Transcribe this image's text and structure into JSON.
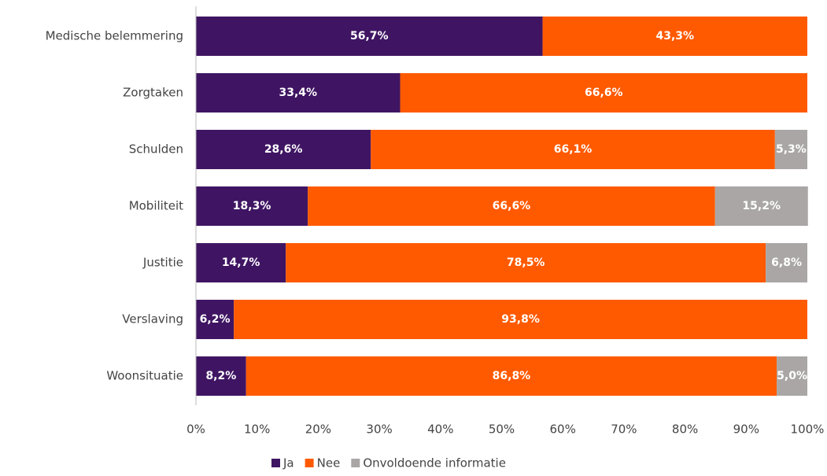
{
  "chart_data": {
    "type": "stacked-barh",
    "categories": [
      "Medische belemmering",
      "Zorgtaken",
      "Schulden",
      "Mobiliteit",
      "Justitie",
      "Verslaving",
      "Woonsituatie"
    ],
    "series": [
      {
        "name": "Ja",
        "color": "#3f1563",
        "values": [
          56.7,
          33.4,
          28.6,
          18.3,
          14.7,
          6.2,
          8.2
        ],
        "value_labels": [
          "56,7%",
          "33,4%",
          "28,6%",
          "18,3%",
          "14,7%",
          "6,2%",
          "8,2%"
        ]
      },
      {
        "name": "Nee",
        "color": "#ff5a00",
        "values": [
          43.3,
          66.6,
          66.1,
          66.6,
          78.5,
          93.8,
          86.8
        ],
        "value_labels": [
          "43,3%",
          "66,6%",
          "66,1%",
          "66,6%",
          "78,5%",
          "93,8%",
          "86,8%"
        ]
      },
      {
        "name": "Onvoldoende informatie",
        "color": "#aaa6a6",
        "values": [
          null,
          null,
          5.3,
          15.2,
          6.8,
          null,
          5.0
        ],
        "value_labels": [
          null,
          null,
          "5,3%",
          "15,2%",
          "6,8%",
          null,
          "5,0%"
        ]
      }
    ],
    "xlim": [
      0,
      100
    ],
    "xticks": [
      {
        "value": 0,
        "label": "0%"
      },
      {
        "value": 10,
        "label": "10%"
      },
      {
        "value": 20,
        "label": "20%"
      },
      {
        "value": 30,
        "label": "30%"
      },
      {
        "value": 40,
        "label": "40%"
      },
      {
        "value": 50,
        "label": "50%"
      },
      {
        "value": 60,
        "label": "60%"
      },
      {
        "value": 70,
        "label": "70%"
      },
      {
        "value": 80,
        "label": "80%"
      },
      {
        "value": 90,
        "label": "90%"
      },
      {
        "value": 100,
        "label": "100%"
      }
    ],
    "grid": false,
    "legend": "bottom"
  }
}
